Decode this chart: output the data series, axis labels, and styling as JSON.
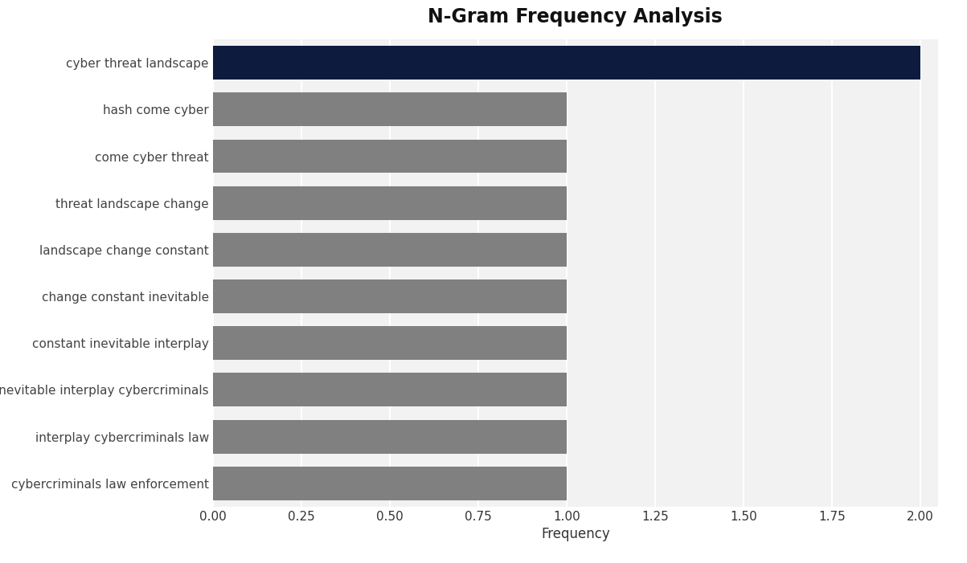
{
  "title": "N-Gram Frequency Analysis",
  "xlabel": "Frequency",
  "categories": [
    "cybercriminals law enforcement",
    "interplay cybercriminals law",
    "inevitable interplay cybercriminals",
    "constant inevitable interplay",
    "change constant inevitable",
    "landscape change constant",
    "threat landscape change",
    "come cyber threat",
    "hash come cyber",
    "cyber threat landscape"
  ],
  "values": [
    1,
    1,
    1,
    1,
    1,
    1,
    1,
    1,
    1,
    2
  ],
  "bar_colors": [
    "#808080",
    "#808080",
    "#808080",
    "#808080",
    "#808080",
    "#808080",
    "#808080",
    "#808080",
    "#808080",
    "#0d1b3e"
  ],
  "xlim": [
    0,
    2.05
  ],
  "xticks": [
    0.0,
    0.25,
    0.5,
    0.75,
    1.0,
    1.25,
    1.5,
    1.75,
    2.0
  ],
  "figure_background_color": "#ffffff",
  "plot_background_color": "#f2f2f2",
  "title_fontsize": 17,
  "axis_label_fontsize": 12,
  "tick_fontsize": 11,
  "ytick_fontsize": 11,
  "bar_height": 0.72,
  "grid_color": "#ffffff",
  "label_color": "#333333",
  "ytick_color": "#444444"
}
